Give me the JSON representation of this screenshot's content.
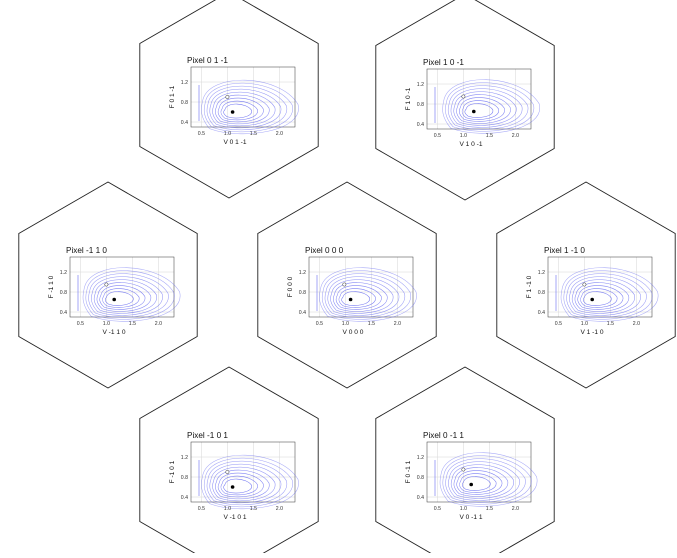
{
  "colors": {
    "hexagon_stroke": "#222222",
    "grid": "#d6d6d6",
    "axis": "#333333",
    "contour": "#5b5ff0",
    "fixed_point_filled": "#000000",
    "fixed_point_open": "#ffffff",
    "text": "#111111"
  },
  "panels": [
    {
      "title": "Pixel 0 1 -1",
      "ylabel": "F 0 1 -1",
      "xlabel": "V 0 1 -1",
      "chart_data": {
        "type": "contour",
        "x_ticks": [
          "0.5",
          "1.0",
          "1.5",
          "2.0"
        ],
        "y_ticks": [
          "0.4",
          "0.8",
          "1.2"
        ],
        "xlim": [
          0.3,
          2.3
        ],
        "ylim": [
          0.3,
          1.5
        ],
        "filled_point": [
          1.1,
          0.6
        ],
        "open_point": [
          1.0,
          0.9
        ]
      }
    },
    {
      "title": "Pixel 1 0 -1",
      "ylabel": "F 1 0 -1",
      "xlabel": "V 1 0 -1",
      "chart_data": {
        "type": "contour",
        "x_ticks": [
          "0.5",
          "1.0",
          "1.5",
          "2.0"
        ],
        "y_ticks": [
          "0.4",
          "0.8",
          "1.2"
        ],
        "xlim": [
          0.3,
          2.3
        ],
        "ylim": [
          0.3,
          1.5
        ],
        "filled_point": [
          1.2,
          0.65
        ],
        "open_point": [
          1.0,
          0.95
        ]
      }
    },
    {
      "title": "Pixel -1 1 0",
      "ylabel": "F -1 1 0",
      "xlabel": "V -1 1 0",
      "chart_data": {
        "type": "contour",
        "x_ticks": [
          "0.5",
          "1.0",
          "1.5",
          "2.0"
        ],
        "y_ticks": [
          "0.4",
          "0.8",
          "1.2"
        ],
        "xlim": [
          0.3,
          2.3
        ],
        "ylim": [
          0.3,
          1.5
        ],
        "filled_point": [
          1.15,
          0.65
        ],
        "open_point": [
          1.0,
          0.95
        ]
      }
    },
    {
      "title": "Pixel 0 0 0",
      "ylabel": "F 0 0 0",
      "xlabel": "V 0 0 0",
      "chart_data": {
        "type": "contour",
        "x_ticks": [
          "0.5",
          "1.0",
          "1.5",
          "2.0"
        ],
        "y_ticks": [
          "0.4",
          "0.8",
          "1.2"
        ],
        "xlim": [
          0.3,
          2.3
        ],
        "ylim": [
          0.3,
          1.5
        ],
        "filled_point": [
          1.1,
          0.65
        ],
        "open_point": [
          0.98,
          0.95
        ]
      }
    },
    {
      "title": "Pixel 1 -1 0",
      "ylabel": "F 1 -1 0",
      "xlabel": "V 1 -1 0",
      "chart_data": {
        "type": "contour",
        "x_ticks": [
          "0.5",
          "1.0",
          "1.5",
          "2.0"
        ],
        "y_ticks": [
          "0.4",
          "0.8",
          "1.2"
        ],
        "xlim": [
          0.3,
          2.3
        ],
        "ylim": [
          0.3,
          1.5
        ],
        "filled_point": [
          1.15,
          0.65
        ],
        "open_point": [
          1.0,
          0.95
        ]
      }
    },
    {
      "title": "Pixel -1 0 1",
      "ylabel": "F -1 0 1",
      "xlabel": "V -1 0 1",
      "chart_data": {
        "type": "contour",
        "x_ticks": [
          "0.5",
          "1.0",
          "1.5",
          "2.0"
        ],
        "y_ticks": [
          "0.4",
          "0.8",
          "1.2"
        ],
        "xlim": [
          0.3,
          2.3
        ],
        "ylim": [
          0.3,
          1.5
        ],
        "filled_point": [
          1.1,
          0.6
        ],
        "open_point": [
          1.0,
          0.9
        ]
      }
    },
    {
      "title": "Pixel 0 -1 1",
      "ylabel": "F 0 -1 1",
      "xlabel": "V 0 -1 1",
      "chart_data": {
        "type": "contour",
        "x_ticks": [
          "0.5",
          "1.0",
          "1.5",
          "2.0"
        ],
        "y_ticks": [
          "0.4",
          "0.8",
          "1.2"
        ],
        "xlim": [
          0.3,
          2.3
        ],
        "ylim": [
          0.3,
          1.5
        ],
        "filled_point": [
          1.15,
          0.65
        ],
        "open_point": [
          1.0,
          0.95
        ]
      }
    }
  ]
}
